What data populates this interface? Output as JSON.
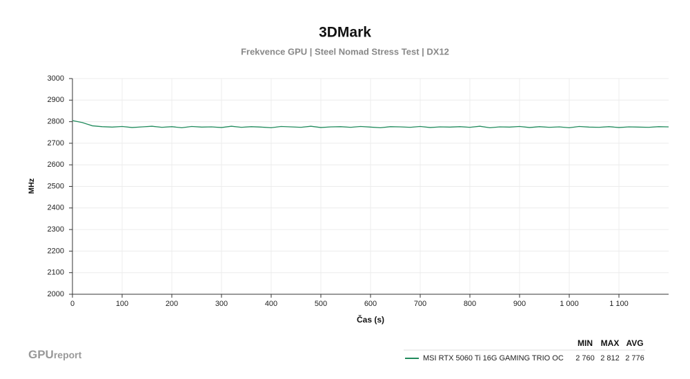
{
  "chart_data": {
    "type": "line",
    "title": "3DMark",
    "subtitle": "Frekvence GPU | Steel Nomad Stress Test | DX12",
    "y_label": "MHz",
    "x_label": "Čas (s)",
    "x": [
      0,
      20,
      40,
      60,
      80,
      100,
      120,
      140,
      160,
      180,
      200,
      220,
      240,
      260,
      280,
      300,
      320,
      340,
      360,
      380,
      400,
      420,
      440,
      460,
      480,
      500,
      520,
      540,
      560,
      580,
      600,
      620,
      640,
      660,
      680,
      700,
      720,
      740,
      760,
      780,
      800,
      820,
      840,
      860,
      880,
      900,
      920,
      940,
      960,
      980,
      1000,
      1020,
      1040,
      1060,
      1080,
      1100,
      1120,
      1140,
      1160,
      1180,
      1200
    ],
    "series": [
      {
        "name": "MSI RTX 5060 Ti 16G GAMING TRIO OC",
        "color": "#1f8a5b",
        "values": [
          2805,
          2796,
          2781,
          2777,
          2775,
          2778,
          2773,
          2776,
          2779,
          2774,
          2777,
          2772,
          2778,
          2775,
          2776,
          2773,
          2779,
          2774,
          2777,
          2775,
          2772,
          2778,
          2776,
          2774,
          2779,
          2773,
          2776,
          2777,
          2774,
          2778,
          2775,
          2772,
          2777,
          2776,
          2774,
          2778,
          2773,
          2776,
          2775,
          2777,
          2774,
          2779,
          2772,
          2776,
          2775,
          2778,
          2773,
          2777,
          2774,
          2776,
          2772,
          2778,
          2775,
          2774,
          2777,
          2773,
          2776,
          2775,
          2774,
          2777,
          2776
        ],
        "stats": [
          2760,
          2812,
          2776
        ],
        "stats_labels": [
          "2 760",
          "2 812",
          "2 776"
        ]
      }
    ],
    "stats_headers": [
      "MIN",
      "MAX",
      "AVG"
    ],
    "xlim": [
      0,
      1200
    ],
    "xticks": [
      0,
      100,
      200,
      300,
      400,
      500,
      600,
      700,
      800,
      900,
      {
        "value": 1000,
        "label": "1 000"
      },
      {
        "value": 1100,
        "label": "1 100"
      }
    ],
    "ylim": [
      2000,
      3000
    ],
    "yticks": [
      2000,
      2100,
      2200,
      2300,
      2400,
      2500,
      2600,
      2700,
      2800,
      2900,
      3000
    ],
    "grid": true,
    "branding": [
      "GPU",
      "report"
    ]
  }
}
